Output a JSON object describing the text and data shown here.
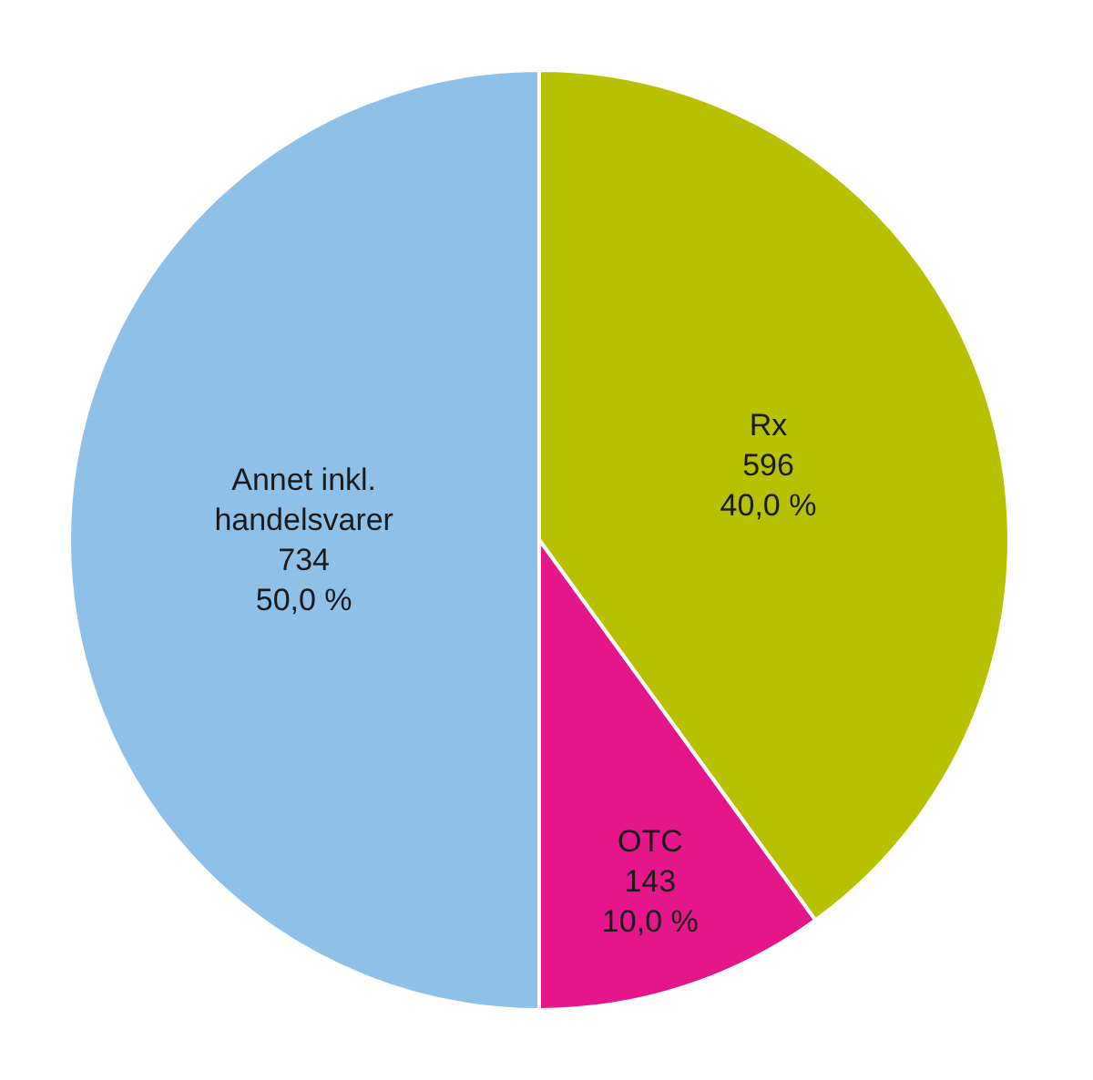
{
  "chart_data": {
    "type": "pie",
    "categories": [
      "Rx",
      "OTC",
      "Annet inkl. handelsvarer"
    ],
    "values": [
      40,
      10,
      50
    ],
    "colors": [
      "#b8c100",
      "#e4168a",
      "#8fc0e8"
    ],
    "value_labels": [
      "596\n40,0 %",
      "143\n10,0 %",
      "734\n50,0 %"
    ],
    "legend": false
  }
}
